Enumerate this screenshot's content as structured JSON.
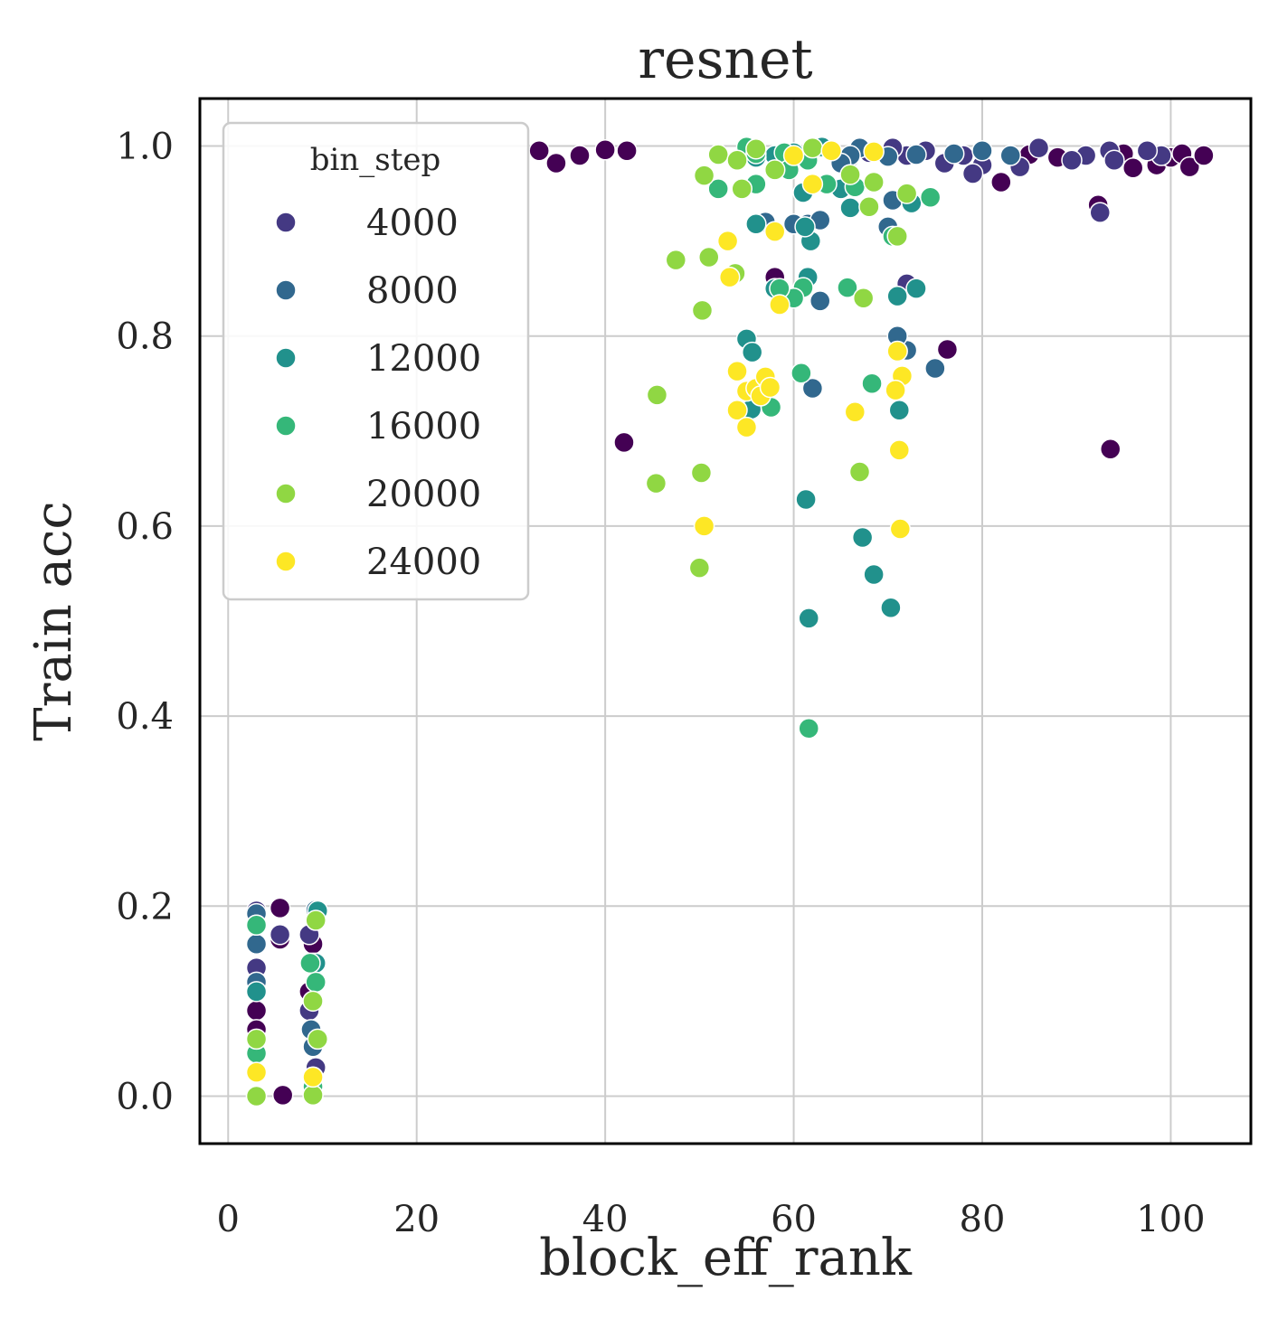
{
  "chart_data": {
    "type": "scatter",
    "title": "resnet",
    "xlabel": "block_eff_rank",
    "ylabel": "Train acc",
    "xlim": [
      -3,
      108.5
    ],
    "ylim": [
      -0.05,
      1.05
    ],
    "xticks": [
      0,
      20,
      40,
      60,
      80,
      100
    ],
    "yticks": [
      0.0,
      0.2,
      0.4,
      0.6,
      0.8,
      1.0
    ],
    "xtick_labels": [
      "0",
      "20",
      "40",
      "60",
      "80",
      "100"
    ],
    "ytick_labels": [
      "0.0",
      "0.2",
      "0.4",
      "0.6",
      "0.8",
      "1.0"
    ],
    "grid": true,
    "legend": {
      "title": "bin_step",
      "position": "upper-left",
      "entries": [
        "4000",
        "8000",
        "12000",
        "16000",
        "20000",
        "24000"
      ]
    },
    "palette": {
      "0": "#440154",
      "4000": "#443983",
      "8000": "#31688e",
      "12000": "#21918c",
      "16000": "#35b779",
      "20000": "#90d743",
      "24000": "#fde725"
    },
    "series": [
      {
        "bin": "0",
        "points": [
          [
            33.0,
            0.995
          ],
          [
            34.8,
            0.982
          ],
          [
            37.3,
            0.99
          ],
          [
            40.0,
            0.996
          ],
          [
            42.3,
            0.995
          ],
          [
            42.0,
            0.688
          ],
          [
            58.0,
            0.862
          ],
          [
            76.3,
            0.786
          ],
          [
            93.6,
            0.681
          ],
          [
            92.3,
            0.938
          ],
          [
            82.0,
            0.962
          ],
          [
            95.0,
            0.992
          ],
          [
            96.0,
            0.977
          ],
          [
            98.5,
            0.98
          ],
          [
            100.0,
            0.988
          ],
          [
            101.2,
            0.992
          ],
          [
            102.0,
            0.978
          ],
          [
            103.5,
            0.99
          ],
          [
            88.0,
            0.988
          ],
          [
            85.0,
            0.991
          ],
          [
            5.5,
            0.198
          ],
          [
            5.5,
            0.165
          ],
          [
            3.0,
            0.09
          ],
          [
            3.0,
            0.07
          ],
          [
            5.8,
            0.001
          ],
          [
            9.0,
            0.16
          ],
          [
            9.2,
            0.06
          ],
          [
            8.6,
            0.11
          ],
          [
            9.0,
            0.005
          ]
        ]
      },
      {
        "bin": "4000",
        "points": [
          [
            72.0,
            0.855
          ],
          [
            92.5,
            0.93
          ],
          [
            93.5,
            0.995
          ],
          [
            91.0,
            0.99
          ],
          [
            89.5,
            0.985
          ],
          [
            86.0,
            0.998
          ],
          [
            84.0,
            0.978
          ],
          [
            80.0,
            0.98
          ],
          [
            78.0,
            0.99
          ],
          [
            76.0,
            0.982
          ],
          [
            74.0,
            0.995
          ],
          [
            72.0,
            0.99
          ],
          [
            70.5,
            0.998
          ],
          [
            68.0,
            0.993
          ],
          [
            66.0,
            0.988
          ],
          [
            99.0,
            0.99
          ],
          [
            97.5,
            0.995
          ],
          [
            94.0,
            0.985
          ],
          [
            79.0,
            0.971
          ],
          [
            3.0,
            0.195
          ],
          [
            3.0,
            0.135
          ],
          [
            3.0,
            0.0
          ],
          [
            5.5,
            0.17
          ],
          [
            9.0,
            0.14
          ],
          [
            8.6,
            0.09
          ],
          [
            9.3,
            0.03
          ],
          [
            8.6,
            0.17
          ],
          [
            9.0,
            0.002
          ]
        ]
      },
      {
        "bin": "8000",
        "points": [
          [
            62.0,
            0.745
          ],
          [
            62.8,
            0.837
          ],
          [
            61.5,
            0.918
          ],
          [
            60.0,
            0.918
          ],
          [
            62.8,
            0.922
          ],
          [
            57.0,
            0.92
          ],
          [
            70.0,
            0.915
          ],
          [
            70.5,
            0.943
          ],
          [
            75.0,
            0.766
          ],
          [
            72.0,
            0.785
          ],
          [
            71.0,
            0.8
          ],
          [
            67.0,
            0.998
          ],
          [
            70.0,
            0.989
          ],
          [
            73.0,
            0.991
          ],
          [
            77.0,
            0.992
          ],
          [
            80.0,
            0.995
          ],
          [
            83.0,
            0.99
          ],
          [
            66.0,
            0.99
          ],
          [
            65.0,
            0.982
          ],
          [
            3.0,
            0.192
          ],
          [
            3.0,
            0.16
          ],
          [
            3.0,
            0.12
          ],
          [
            9.0,
            0.052
          ],
          [
            9.3,
            0.196
          ],
          [
            8.8,
            0.07
          ]
        ]
      },
      {
        "bin": "12000",
        "points": [
          [
            61.3,
            0.628
          ],
          [
            61.6,
            0.503
          ],
          [
            67.3,
            0.588
          ],
          [
            68.5,
            0.549
          ],
          [
            70.3,
            0.514
          ],
          [
            71.2,
            0.722
          ],
          [
            61.5,
            0.862
          ],
          [
            61.8,
            0.9
          ],
          [
            61.2,
            0.915
          ],
          [
            55.0,
            0.797
          ],
          [
            55.6,
            0.783
          ],
          [
            55.5,
            0.723
          ],
          [
            71.0,
            0.842
          ],
          [
            73.0,
            0.85
          ],
          [
            72.5,
            0.94
          ],
          [
            66.0,
            0.935
          ],
          [
            58.0,
            0.85
          ],
          [
            56.0,
            0.918
          ],
          [
            61.0,
            0.951
          ],
          [
            63.0,
            0.999
          ],
          [
            60.0,
            0.993
          ],
          [
            58.0,
            0.99
          ],
          [
            56.0,
            0.988
          ],
          [
            65.0,
            0.955
          ],
          [
            3.0,
            0.11
          ],
          [
            3.0,
            0.18
          ],
          [
            9.5,
            0.195
          ],
          [
            9.3,
            0.14
          ],
          [
            9.0,
            0.02
          ]
        ]
      },
      {
        "bin": "16000",
        "points": [
          [
            61.6,
            0.387
          ],
          [
            60.8,
            0.761
          ],
          [
            68.3,
            0.75
          ],
          [
            57.6,
            0.725
          ],
          [
            65.7,
            0.851
          ],
          [
            61.0,
            0.851
          ],
          [
            60.0,
            0.84
          ],
          [
            55.0,
            0.999
          ],
          [
            52.0,
            0.955
          ],
          [
            56.0,
            0.96
          ],
          [
            59.0,
            0.993
          ],
          [
            61.5,
            0.985
          ],
          [
            63.5,
            0.96
          ],
          [
            66.5,
            0.957
          ],
          [
            74.5,
            0.946
          ],
          [
            56.0,
            0.992
          ],
          [
            59.5,
            0.975
          ],
          [
            70.5,
            0.905
          ],
          [
            58.5,
            0.85
          ],
          [
            3.0,
            0.045
          ],
          [
            3.0,
            0.18
          ],
          [
            9.3,
            0.12
          ],
          [
            9.0,
            0.01
          ],
          [
            8.7,
            0.14
          ]
        ]
      },
      {
        "bin": "20000",
        "points": [
          [
            45.5,
            0.738
          ],
          [
            47.5,
            0.88
          ],
          [
            51.0,
            0.883
          ],
          [
            50.3,
            0.827
          ],
          [
            45.4,
            0.645
          ],
          [
            50.2,
            0.656
          ],
          [
            50.0,
            0.556
          ],
          [
            53.8,
            0.866
          ],
          [
            67.0,
            0.657
          ],
          [
            67.4,
            0.84
          ],
          [
            71.0,
            0.905
          ],
          [
            68.0,
            0.936
          ],
          [
            50.5,
            0.969
          ],
          [
            52.0,
            0.991
          ],
          [
            54.0,
            0.985
          ],
          [
            56.0,
            0.997
          ],
          [
            58.0,
            0.975
          ],
          [
            62.0,
            0.998
          ],
          [
            66.0,
            0.97
          ],
          [
            68.5,
            0.962
          ],
          [
            72.0,
            0.95
          ],
          [
            54.5,
            0.955
          ],
          [
            3.0,
            0.0
          ],
          [
            3.0,
            0.06
          ],
          [
            9.0,
            0.1
          ],
          [
            9.3,
            0.185
          ],
          [
            9.0,
            0.001
          ],
          [
            9.5,
            0.06
          ]
        ]
      },
      {
        "bin": "24000",
        "points": [
          [
            53.0,
            0.9
          ],
          [
            53.2,
            0.862
          ],
          [
            58.5,
            0.833
          ],
          [
            58.0,
            0.91
          ],
          [
            54.0,
            0.763
          ],
          [
            55.0,
            0.742
          ],
          [
            56.0,
            0.745
          ],
          [
            56.5,
            0.737
          ],
          [
            57.0,
            0.757
          ],
          [
            57.5,
            0.746
          ],
          [
            54.0,
            0.722
          ],
          [
            55.0,
            0.704
          ],
          [
            71.5,
            0.758
          ],
          [
            71.0,
            0.784
          ],
          [
            70.8,
            0.743
          ],
          [
            71.2,
            0.68
          ],
          [
            71.3,
            0.597
          ],
          [
            66.5,
            0.72
          ],
          [
            50.5,
            0.6
          ],
          [
            60.0,
            0.99
          ],
          [
            64.0,
            0.995
          ],
          [
            62.0,
            0.96
          ],
          [
            68.5,
            0.994
          ],
          [
            3.0,
            0.025
          ],
          [
            9.0,
            0.02
          ]
        ]
      }
    ]
  }
}
